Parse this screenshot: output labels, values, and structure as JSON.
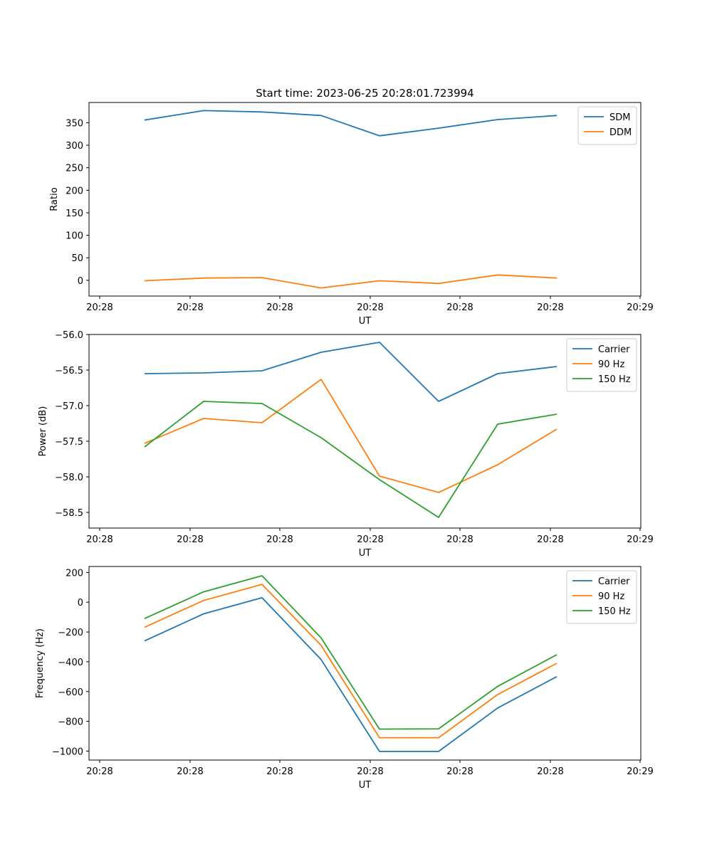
{
  "figure": {
    "title": "Start time: 2023-06-25 20:28:01.723994"
  },
  "chart_data": [
    {
      "type": "line",
      "ylabel": "Ratio",
      "xlabel": "UT",
      "xticks": [
        "20:28",
        "20:28",
        "20:28",
        "20:28",
        "20:28",
        "20:28",
        "20:28"
      ],
      "xticks_extra": "20:29",
      "ylim": [
        -35,
        395
      ],
      "yticks": [
        0,
        50,
        100,
        150,
        200,
        250,
        300,
        350
      ],
      "yticks_labels": [
        "0",
        "50",
        "100",
        "150",
        "200",
        "250",
        "300",
        "350"
      ],
      "legend": "top-right",
      "grid": false,
      "series": [
        {
          "name": "SDM",
          "color": "#1f77b4",
          "values": [
            356,
            377,
            374,
            366,
            321,
            338,
            357,
            366
          ]
        },
        {
          "name": "DDM",
          "color": "#ff7f0e",
          "values": [
            -1,
            5,
            6,
            -17,
            -1,
            -7,
            12,
            5
          ]
        }
      ]
    },
    {
      "type": "line",
      "ylabel": "Power (dB)",
      "xlabel": "UT",
      "xticks": [
        "20:28",
        "20:28",
        "20:28",
        "20:28",
        "20:28",
        "20:28",
        "20:28"
      ],
      "xticks_extra": "20:29",
      "ylim": [
        -58.72,
        -56.0
      ],
      "yticks": [
        -58.5,
        -58.0,
        -57.5,
        -57.0,
        -56.5,
        -56.0
      ],
      "yticks_labels": [
        "−58.5",
        "−58.0",
        "−57.5",
        "−57.0",
        "−56.5",
        "−56.0"
      ],
      "legend": "top-right",
      "grid": false,
      "series": [
        {
          "name": "Carrier",
          "color": "#1f77b4",
          "values": [
            -56.55,
            -56.54,
            -56.51,
            -56.25,
            -56.11,
            -56.94,
            -56.55,
            -56.45
          ]
        },
        {
          "name": "90 Hz",
          "color": "#ff7f0e",
          "values": [
            -57.53,
            -57.18,
            -57.24,
            -56.63,
            -57.99,
            -58.22,
            -57.83,
            -57.33
          ]
        },
        {
          "name": "150 Hz",
          "color": "#2ca02c",
          "values": [
            -57.58,
            -56.94,
            -56.97,
            -57.45,
            -58.04,
            -58.57,
            -57.26,
            -57.12
          ]
        }
      ]
    },
    {
      "type": "line",
      "ylabel": "Frequency (Hz)",
      "xlabel": "UT",
      "xticks": [
        "20:28",
        "20:28",
        "20:28",
        "20:28",
        "20:28",
        "20:28",
        "20:28"
      ],
      "xticks_extra": "20:29",
      "ylim": [
        -1060,
        240
      ],
      "yticks": [
        -1000,
        -800,
        -600,
        -400,
        -200,
        0,
        200
      ],
      "yticks_labels": [
        "−1000",
        "−800",
        "−600",
        "−400",
        "−200",
        "0",
        "200"
      ],
      "legend": "top-right",
      "grid": false,
      "series": [
        {
          "name": "Carrier",
          "color": "#1f77b4",
          "values": [
            -260,
            -78,
            30,
            -385,
            -1002,
            -1002,
            -710,
            -500
          ]
        },
        {
          "name": "90 Hz",
          "color": "#ff7f0e",
          "values": [
            -168,
            12,
            120,
            -290,
            -910,
            -910,
            -620,
            -410
          ]
        },
        {
          "name": "150 Hz",
          "color": "#2ca02c",
          "values": [
            -110,
            70,
            178,
            -240,
            -852,
            -850,
            -565,
            -352
          ]
        }
      ]
    }
  ]
}
